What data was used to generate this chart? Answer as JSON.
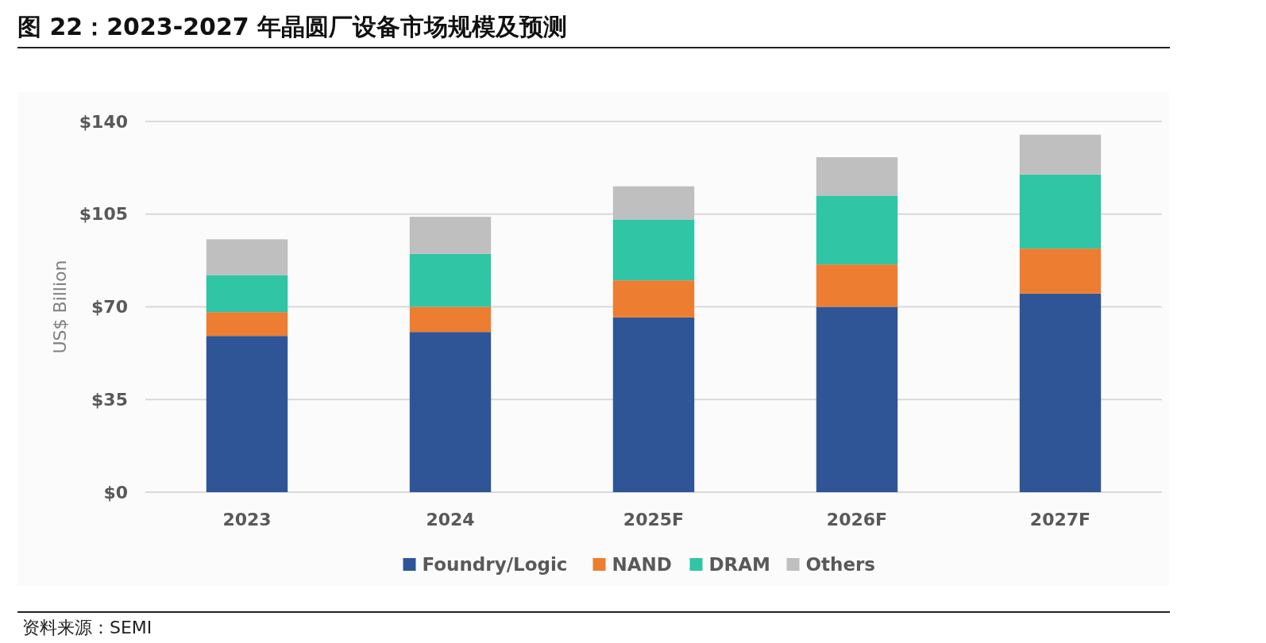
{
  "chart_data": {
    "type": "bar",
    "stacked": true,
    "title": "图 22：2023-2027 年晶圆厂设备市场规模及预测",
    "ylabel": "US$ Billion",
    "annotations": [
      "资料来源：SEMI"
    ],
    "categories": [
      "2023",
      "2024",
      "2025F",
      "2026F",
      "2027F"
    ],
    "series": [
      {
        "name": "Foundry/Logic",
        "color": "#2f5597",
        "values": [
          59,
          60.5,
          66,
          70,
          75
        ]
      },
      {
        "name": "NAND",
        "color": "#ed7d31",
        "values": [
          9,
          9.5,
          14,
          16,
          17
        ]
      },
      {
        "name": "DRAM",
        "color": "#2fc5a5",
        "values": [
          14,
          20,
          23,
          26,
          28
        ]
      },
      {
        "name": "Others",
        "color": "#bfbfbf",
        "values": [
          13.5,
          14,
          12.5,
          14.5,
          15
        ]
      }
    ],
    "ylim": [
      0,
      140
    ],
    "yticks": [
      {
        "value": 0,
        "label": "$0"
      },
      {
        "value": 35,
        "label": "$35"
      },
      {
        "value": 70,
        "label": "$70"
      },
      {
        "value": 105,
        "label": "$105"
      },
      {
        "value": 140,
        "label": "$140"
      }
    ],
    "grid": "y",
    "legend": "bottom"
  }
}
